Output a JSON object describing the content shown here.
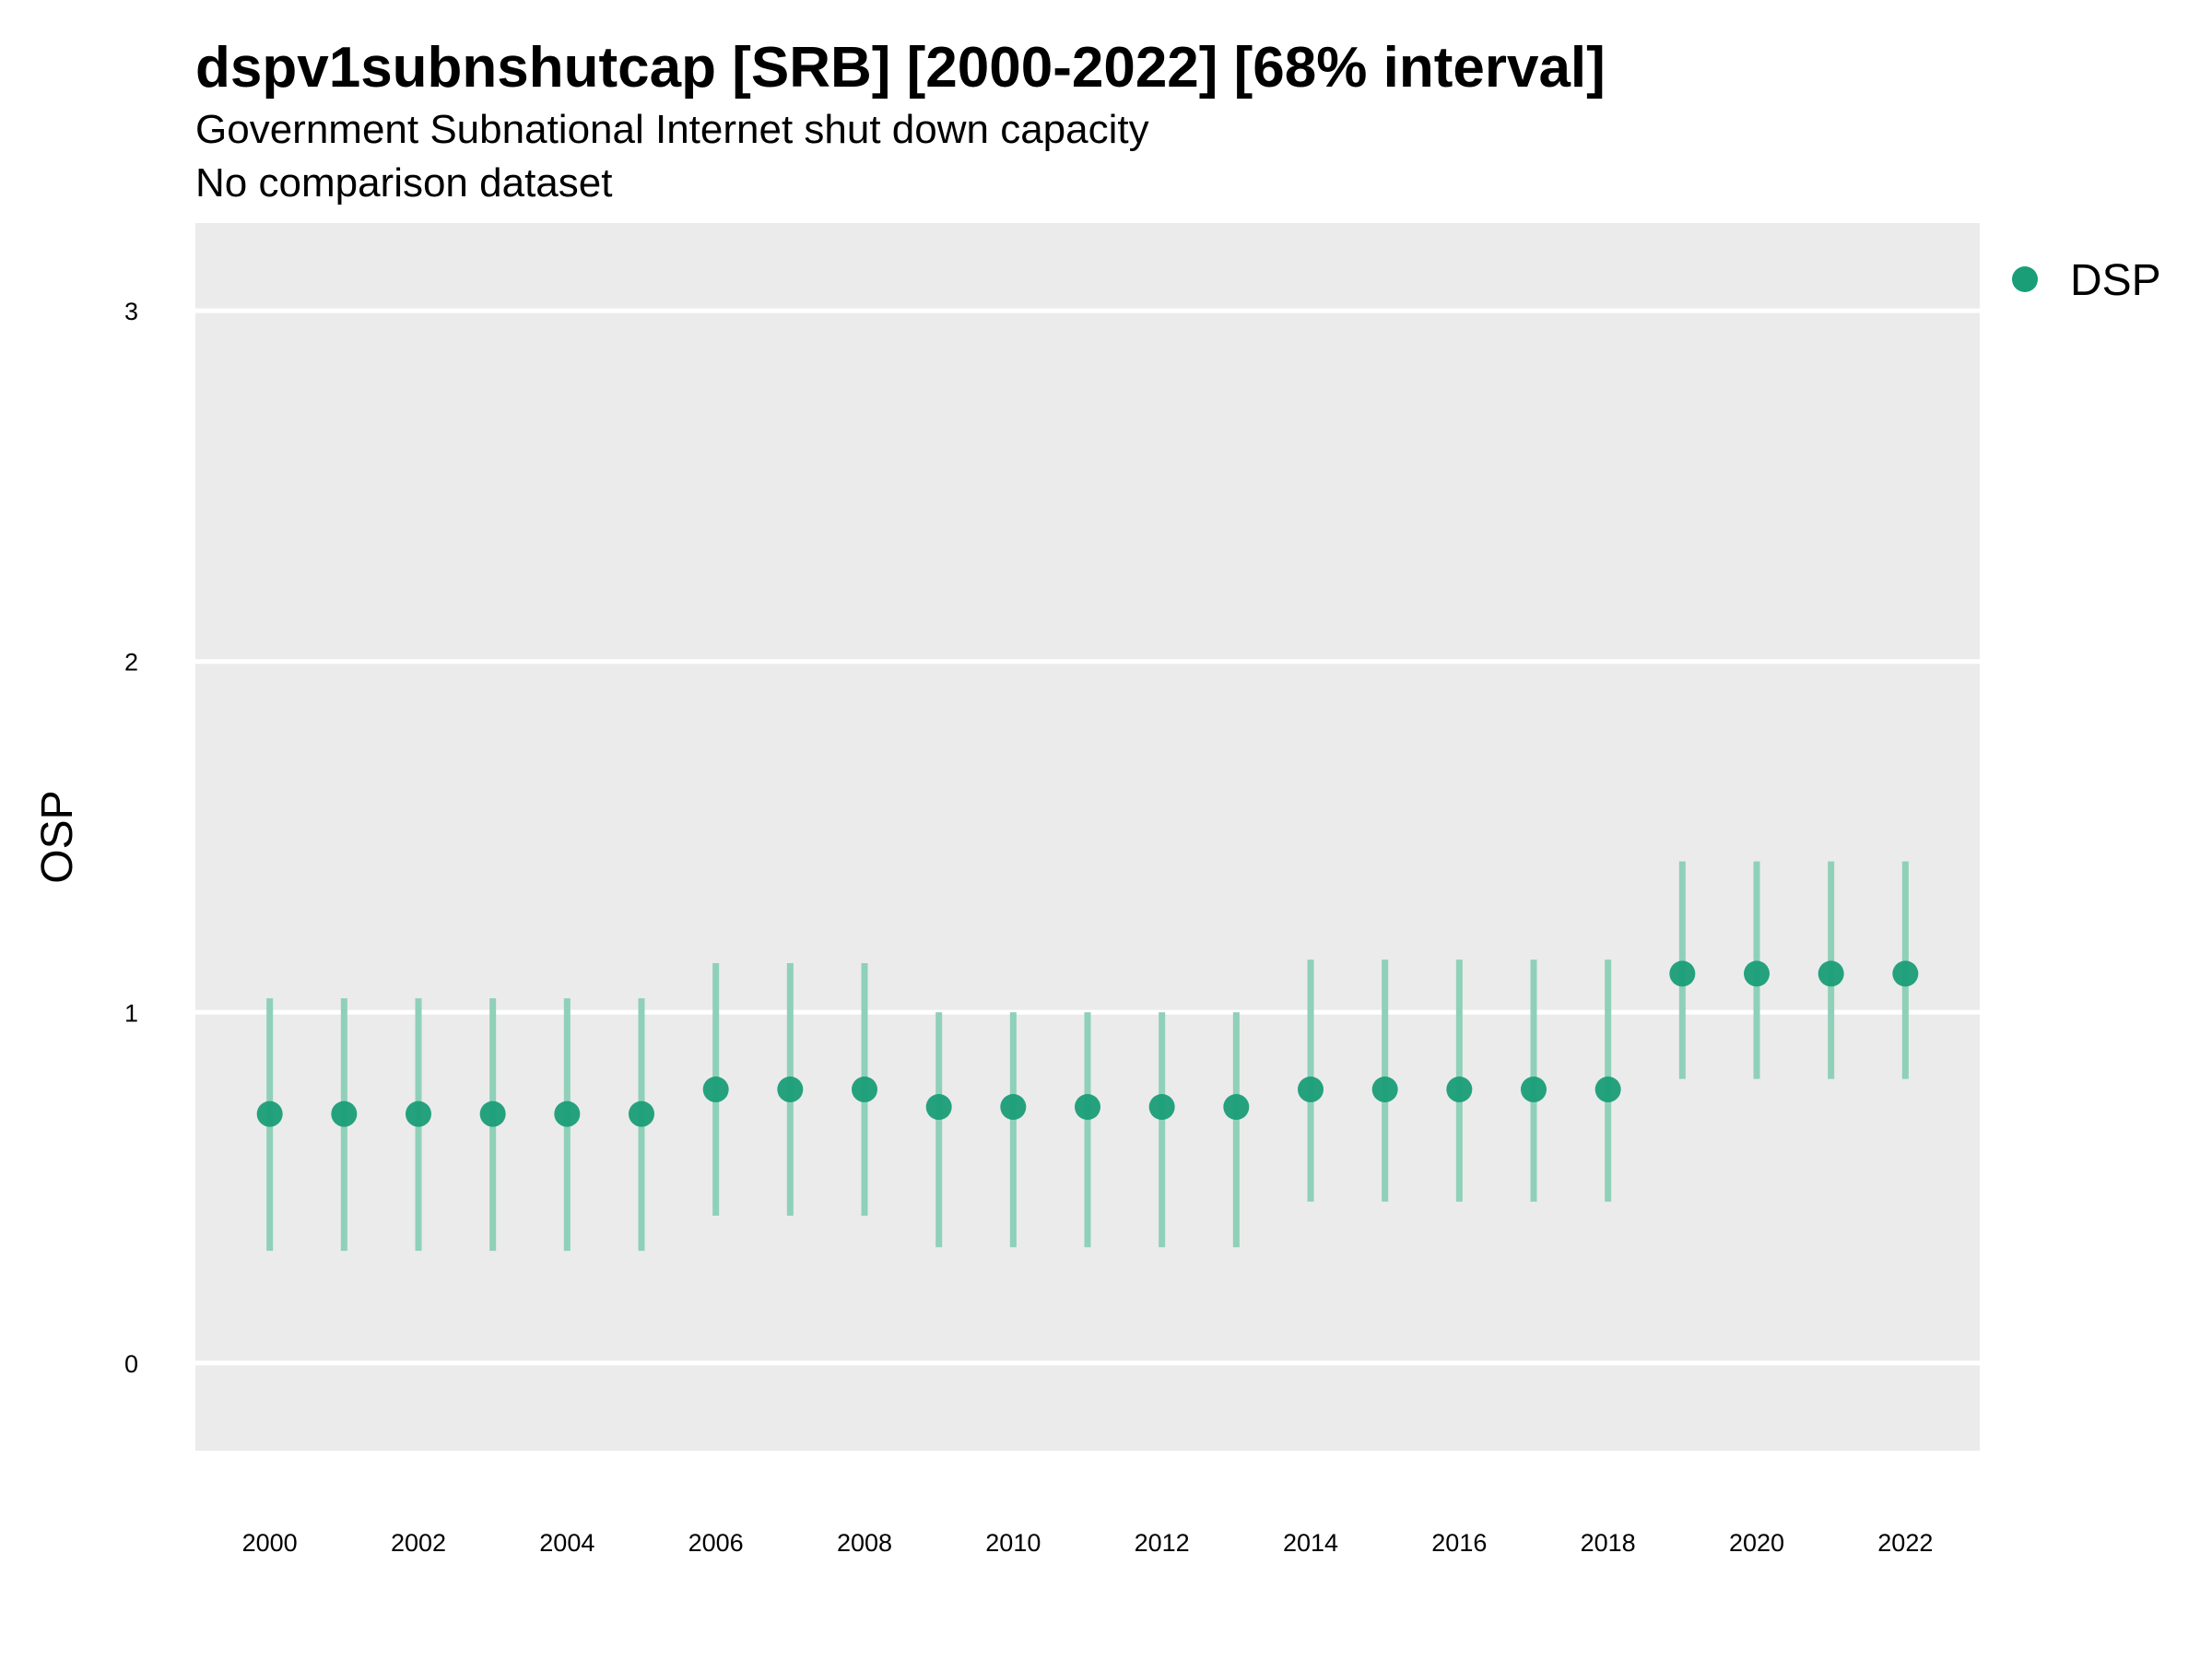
{
  "chart_data": {
    "type": "scatter",
    "title": "dspv1subnshutcap [SRB] [2000-2022] [68% interval]",
    "subtitle": "Government Subnational Internet shut down capacity",
    "caption": "No comparison dataset",
    "xlabel": "",
    "ylabel": "OSP",
    "xlim": [
      1999,
      2023
    ],
    "ylim": [
      -0.25,
      3.25
    ],
    "x_ticks": [
      "2000",
      "2002",
      "2004",
      "2006",
      "2008",
      "2010",
      "2012",
      "2014",
      "2016",
      "2018",
      "2020",
      "2022"
    ],
    "y_ticks": [
      "0",
      "1",
      "2",
      "3"
    ],
    "grid": true,
    "legend_position": "top-right",
    "colors": {
      "point": "#1a9e77",
      "interval": "#8fd0b9",
      "panel": "#ebebeb",
      "grid": "#ffffff"
    },
    "series": [
      {
        "name": "DSP",
        "x": [
          2000,
          2001,
          2002,
          2003,
          2004,
          2005,
          2006,
          2007,
          2008,
          2009,
          2010,
          2011,
          2012,
          2013,
          2014,
          2015,
          2016,
          2017,
          2018,
          2019,
          2020,
          2021,
          2022
        ],
        "y": [
          0.71,
          0.71,
          0.71,
          0.71,
          0.71,
          0.71,
          0.78,
          0.78,
          0.78,
          0.73,
          0.73,
          0.73,
          0.73,
          0.73,
          0.78,
          0.78,
          0.78,
          0.78,
          0.78,
          1.11,
          1.11,
          1.11,
          1.11
        ],
        "lower": [
          0.32,
          0.32,
          0.32,
          0.32,
          0.32,
          0.32,
          0.42,
          0.42,
          0.42,
          0.33,
          0.33,
          0.33,
          0.33,
          0.33,
          0.46,
          0.46,
          0.46,
          0.46,
          0.46,
          0.81,
          0.81,
          0.81,
          0.81
        ],
        "upper": [
          1.04,
          1.04,
          1.04,
          1.04,
          1.04,
          1.04,
          1.14,
          1.14,
          1.14,
          1.0,
          1.0,
          1.0,
          1.0,
          1.0,
          1.15,
          1.15,
          1.15,
          1.15,
          1.15,
          1.43,
          1.43,
          1.43,
          1.43
        ]
      }
    ]
  }
}
